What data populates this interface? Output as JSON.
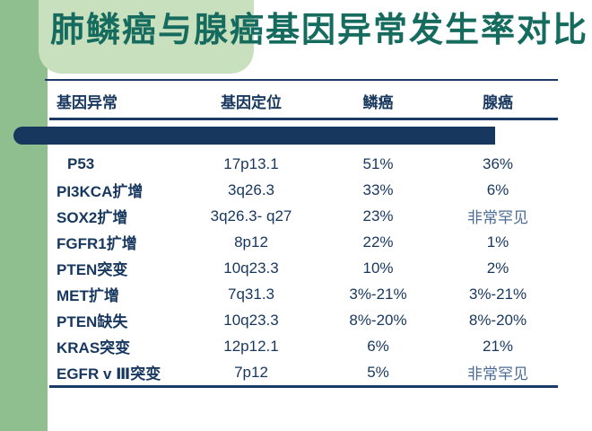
{
  "title": "肺鳞癌与腺癌基因异常发生率对比",
  "colors": {
    "title_teal": "#156b5e",
    "table_navy": "#17375e",
    "rule_navy": "#1b3a66",
    "sidebar_green": "#8fbf8f",
    "deco_light_green": "#c8e0be",
    "muted_rare_text": "#4d6c95",
    "background": "#ffffff"
  },
  "chart_data": {
    "type": "table",
    "title": "肺鳞癌与腺癌基因异常发生率对比",
    "columns": [
      "基因异常",
      "基因定位",
      "鳞癌",
      "腺癌"
    ],
    "rows": [
      {
        "gene": "P53",
        "location": "17p13.1",
        "squamous": "51%",
        "adeno": "36%",
        "indent": true
      },
      {
        "gene": "PI3KCA扩增",
        "location": "3q26.3",
        "squamous": "33%",
        "adeno": "6%"
      },
      {
        "gene": "SOX2扩增",
        "location": "3q26.3- q27",
        "squamous": "23%",
        "adeno": "非常罕见",
        "adeno_muted": true
      },
      {
        "gene": "FGFR1扩增",
        "location": "8p12",
        "squamous": "22%",
        "adeno": "1%"
      },
      {
        "gene": "PTEN突变",
        "location": "10q23.3",
        "squamous": "10%",
        "adeno": "2%"
      },
      {
        "gene": "MET扩增",
        "location": "7q31.3",
        "squamous": "3%-21%",
        "adeno": "3%-21%"
      },
      {
        "gene": "PTEN缺失",
        "location": "10q23.3",
        "squamous": "8%-20%",
        "adeno": "8%-20%"
      },
      {
        "gene": "KRAS突变",
        "location": "12p12.1",
        "squamous": "6%",
        "adeno": "21%"
      },
      {
        "gene": "EGFR v Ⅲ突变",
        "location": "7p12",
        "squamous": "5%",
        "adeno": "非常罕见",
        "adeno_muted": true
      }
    ]
  }
}
